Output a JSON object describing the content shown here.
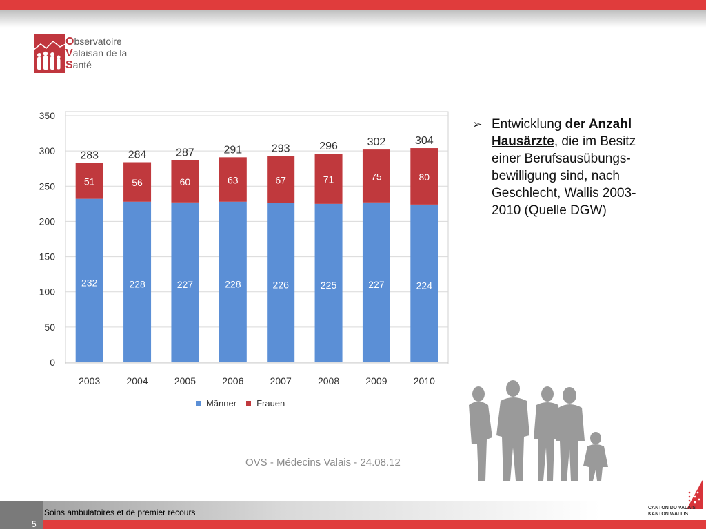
{
  "logo": {
    "line1_initial": "O",
    "line1_rest": "bservatoire",
    "line2_initial": "V",
    "line2_rest": "alaisan de la",
    "line3_initial": "S",
    "line3_rest": "anté"
  },
  "chart_data": {
    "type": "bar",
    "stacked": true,
    "categories": [
      "2003",
      "2004",
      "2005",
      "2006",
      "2007",
      "2008",
      "2009",
      "2010"
    ],
    "series": [
      {
        "name": "Männer",
        "values": [
          232,
          228,
          227,
          228,
          226,
          225,
          227,
          224
        ],
        "color": "#5b8fd6"
      },
      {
        "name": "Frauen",
        "values": [
          51,
          56,
          60,
          63,
          67,
          71,
          75,
          80
        ],
        "color": "#c0393d"
      }
    ],
    "totals": [
      283,
      284,
      287,
      291,
      293,
      296,
      302,
      304
    ],
    "yticks": [
      0,
      50,
      100,
      150,
      200,
      250,
      300,
      350
    ],
    "ylim": [
      0,
      350
    ],
    "grid": true,
    "legend": "bottom"
  },
  "legend": {
    "maenner": "Männer",
    "frauen": "Frauen"
  },
  "caption": "OVS - Médecins Valais - 24.08.12",
  "side": {
    "bullet": "➢",
    "t1": "Entwicklung ",
    "t2": "der Anzahl Hausärzte",
    "t3": ", die im Besitz einer Berufsausübungs-bewilligung sind, nach Geschlecht, Wallis 2003-2010 (Quelle DGW)"
  },
  "footer": {
    "text": "Soins ambulatoires et de premier recours",
    "page": "5"
  },
  "canton": {
    "line1": "CANTON DU VALAIS",
    "line2": "KANTON WALLIS"
  }
}
